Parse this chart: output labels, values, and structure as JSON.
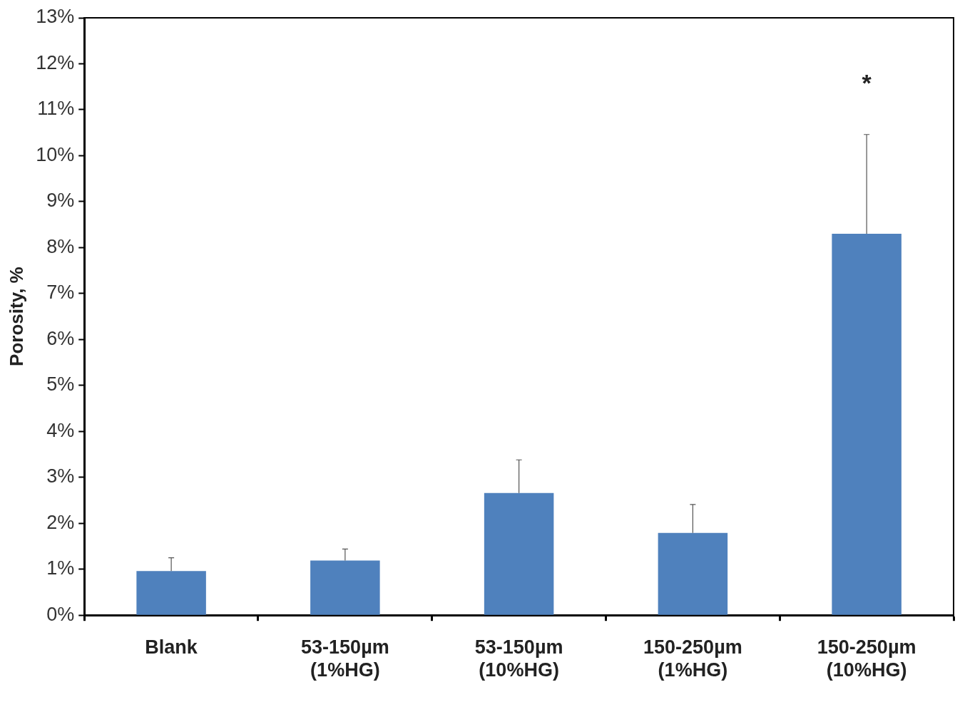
{
  "chart_data": {
    "type": "bar",
    "ylabel": "Porosity, %",
    "categories": [
      "Blank",
      "53-150µm\n(1%HG)",
      "53-150µm\n(10%HG)",
      "150-250µm\n(1%HG)",
      "150-250µm\n(10%HG)"
    ],
    "values": [
      0.96,
      1.19,
      2.66,
      1.79,
      8.3
    ],
    "errors": [
      [
        0.96,
        1.25
      ],
      [
        1.19,
        1.44
      ],
      [
        2.66,
        3.38
      ],
      [
        1.79,
        2.41
      ],
      [
        8.3,
        10.46
      ]
    ],
    "color": "#4f81bd",
    "ylim": [
      0,
      13
    ],
    "yticks": [
      {
        "value": 0,
        "label": "0%"
      },
      {
        "value": 1,
        "label": "1%"
      },
      {
        "value": 2,
        "label": "2%"
      },
      {
        "value": 3,
        "label": "3%"
      },
      {
        "value": 4,
        "label": "4%"
      },
      {
        "value": 5,
        "label": "5%"
      },
      {
        "value": 6,
        "label": "6%"
      },
      {
        "value": 7,
        "label": "7%"
      },
      {
        "value": 8,
        "label": "8%"
      },
      {
        "value": 9,
        "label": "9%"
      },
      {
        "value": 10,
        "label": "10%"
      },
      {
        "value": 11,
        "label": "11%"
      },
      {
        "value": 12,
        "label": "12%"
      },
      {
        "value": 13,
        "label": "13%"
      }
    ],
    "annotations": [
      "*"
    ],
    "grid": false,
    "legend": false
  }
}
